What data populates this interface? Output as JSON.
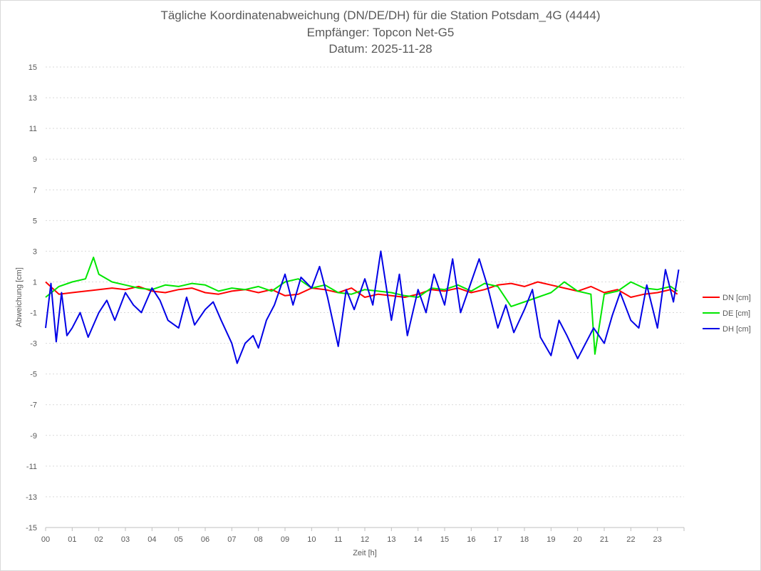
{
  "chart_data": {
    "type": "line",
    "title_lines": [
      "Tägliche Koordinatenabweichung (DN/DE/DH) für die Station Potsdam_4G (4444)",
      "Empfänger: Topcon Net-G5",
      "Datum: 2025-11-28"
    ],
    "xlabel": "Zeit [h]",
    "ylabel": "Abweichung [cm]",
    "xlim": [
      0,
      24
    ],
    "ylim": [
      -15,
      15
    ],
    "x_ticks": [
      "00",
      "01",
      "02",
      "03",
      "04",
      "05",
      "06",
      "07",
      "08",
      "09",
      "10",
      "11",
      "12",
      "13",
      "14",
      "15",
      "16",
      "17",
      "18",
      "19",
      "20",
      "21",
      "22",
      "23"
    ],
    "y_ticks": [
      15,
      13,
      11,
      9,
      7,
      5,
      3,
      1,
      -1,
      -3,
      -5,
      -7,
      -9,
      -11,
      -13,
      -15
    ],
    "legend_position": "right",
    "grid": "horizontal dashed",
    "series": [
      {
        "name": "DN [cm]",
        "color": "#ff0000",
        "x": [
          0,
          0.5,
          1,
          1.5,
          2,
          2.5,
          3,
          3.5,
          4,
          4.5,
          5,
          5.5,
          6,
          6.5,
          7,
          7.5,
          8,
          8.5,
          9,
          9.5,
          10,
          10.5,
          11,
          11.5,
          12,
          12.5,
          13,
          13.5,
          14,
          14.5,
          15,
          15.5,
          16,
          16.5,
          17,
          17.5,
          18,
          18.5,
          19,
          19.5,
          20,
          20.5,
          21,
          21.5,
          22,
          22.5,
          23,
          23.5,
          23.75
        ],
        "y": [
          1.0,
          0.2,
          0.3,
          0.4,
          0.5,
          0.6,
          0.5,
          0.7,
          0.4,
          0.3,
          0.5,
          0.6,
          0.3,
          0.2,
          0.4,
          0.5,
          0.3,
          0.5,
          0.1,
          0.2,
          0.6,
          0.5,
          0.3,
          0.6,
          0.0,
          0.2,
          0.1,
          0.0,
          0.2,
          0.5,
          0.4,
          0.6,
          0.3,
          0.5,
          0.8,
          0.9,
          0.7,
          1.0,
          0.8,
          0.6,
          0.4,
          0.7,
          0.3,
          0.5,
          0.0,
          0.2,
          0.3,
          0.5,
          0.2
        ]
      },
      {
        "name": "DE [cm]",
        "color": "#00e600",
        "x": [
          0,
          0.5,
          1,
          1.5,
          1.8,
          2,
          2.5,
          3,
          3.5,
          4,
          4.5,
          5,
          5.5,
          6,
          6.5,
          7,
          7.5,
          8,
          8.5,
          9,
          9.5,
          10,
          10.5,
          11,
          11.5,
          12,
          12.5,
          13,
          13.5,
          14,
          14.5,
          15,
          15.5,
          16,
          16.5,
          17,
          17.5,
          18,
          18.5,
          19,
          19.5,
          20,
          20.5,
          20.65,
          21,
          21.5,
          22,
          22.5,
          23,
          23.5,
          23.75
        ],
        "y": [
          0.0,
          0.7,
          1.0,
          1.2,
          2.6,
          1.5,
          1.0,
          0.8,
          0.6,
          0.5,
          0.8,
          0.7,
          0.9,
          0.8,
          0.4,
          0.6,
          0.5,
          0.7,
          0.4,
          1.0,
          1.2,
          0.6,
          0.8,
          0.3,
          0.2,
          0.5,
          0.4,
          0.3,
          0.1,
          0.0,
          0.6,
          0.5,
          0.8,
          0.4,
          0.9,
          0.7,
          -0.6,
          -0.3,
          0.0,
          0.3,
          1.0,
          0.4,
          0.2,
          -3.7,
          0.2,
          0.4,
          1.0,
          0.6,
          0.5,
          0.7,
          0.4
        ]
      },
      {
        "name": "DH [cm]",
        "color": "#0000e6",
        "x": [
          0,
          0.2,
          0.4,
          0.6,
          0.8,
          1,
          1.3,
          1.6,
          2,
          2.3,
          2.6,
          3,
          3.3,
          3.6,
          4,
          4.3,
          4.6,
          5,
          5.3,
          5.6,
          6,
          6.3,
          6.6,
          7,
          7.2,
          7.5,
          7.8,
          8,
          8.3,
          8.6,
          9,
          9.3,
          9.6,
          10,
          10.3,
          10.6,
          11,
          11.3,
          11.6,
          12,
          12.3,
          12.6,
          13,
          13.3,
          13.6,
          14,
          14.3,
          14.6,
          15,
          15.3,
          15.6,
          16,
          16.3,
          16.6,
          17,
          17.3,
          17.6,
          18,
          18.3,
          18.6,
          19,
          19.3,
          19.6,
          20,
          20.3,
          20.6,
          21,
          21.3,
          21.6,
          22,
          22.3,
          22.6,
          23,
          23.3,
          23.6,
          23.8
        ],
        "y": [
          -2.0,
          0.9,
          -2.9,
          0.3,
          -2.5,
          -2.0,
          -1.0,
          -2.6,
          -1.0,
          -0.2,
          -1.5,
          0.3,
          -0.5,
          -1.0,
          0.6,
          -0.2,
          -1.5,
          -2.0,
          0.0,
          -1.8,
          -0.8,
          -0.3,
          -1.5,
          -3.0,
          -4.3,
          -3.0,
          -2.5,
          -3.3,
          -1.5,
          -0.5,
          1.5,
          -0.5,
          1.3,
          0.6,
          2.0,
          0.0,
          -3.2,
          0.5,
          -0.8,
          1.2,
          -0.5,
          3.0,
          -1.5,
          1.5,
          -2.5,
          0.5,
          -1.0,
          1.5,
          -0.5,
          2.5,
          -1.0,
          1.0,
          2.5,
          0.8,
          -2.0,
          -0.5,
          -2.3,
          -0.8,
          0.5,
          -2.6,
          -3.8,
          -1.5,
          -2.5,
          -4.0,
          -3.0,
          -2.0,
          -3.0,
          -1.2,
          0.3,
          -1.5,
          -2.0,
          0.8,
          -2.0,
          1.8,
          -0.3,
          1.8
        ]
      }
    ]
  }
}
